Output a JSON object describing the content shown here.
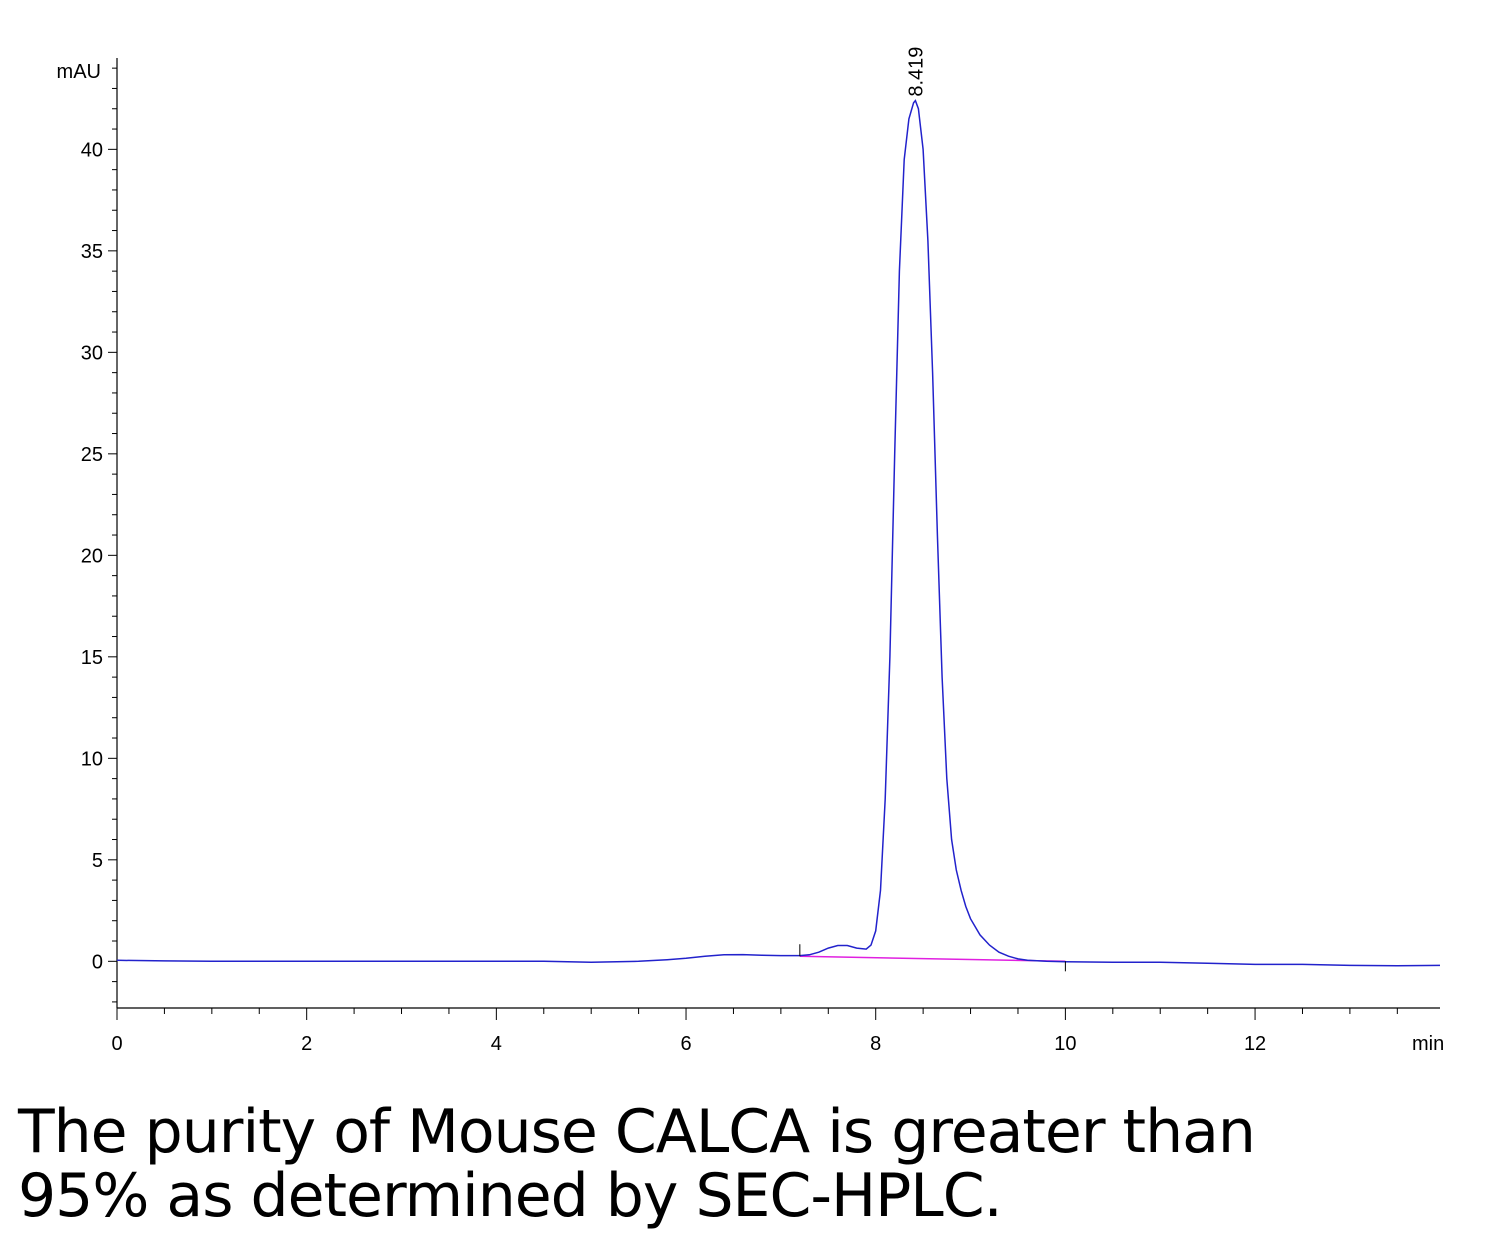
{
  "chart_data": {
    "type": "line",
    "x_unit_label": "min",
    "y_unit_label": "mAU",
    "xlim": [
      0,
      13.95
    ],
    "ylim": [
      -2.3,
      44.5
    ],
    "x_ticks": [
      0,
      2,
      4,
      6,
      8,
      10,
      12
    ],
    "x_tick_labels": [
      "0",
      "2",
      "4",
      "6",
      "8",
      "10",
      "12"
    ],
    "y_ticks": [
      0,
      5,
      10,
      15,
      20,
      25,
      30,
      35,
      40
    ],
    "y_tick_labels": [
      "0",
      "5",
      "10",
      "15",
      "20",
      "25",
      "30",
      "35",
      "40"
    ],
    "grid": false,
    "colors": {
      "signal": "#2222cc",
      "baseline": "#e020e0",
      "axes": "#000000"
    },
    "series": [
      {
        "x": [
          0,
          0.5,
          1,
          2,
          3,
          4,
          4.5,
          5,
          5.5,
          5.8,
          6.0,
          6.2,
          6.4,
          6.6,
          6.8,
          7.0,
          7.2,
          7.3,
          7.4,
          7.5,
          7.6,
          7.7,
          7.8,
          7.9,
          7.95,
          8.0,
          8.05,
          8.1,
          8.15,
          8.2,
          8.25,
          8.3,
          8.35,
          8.4,
          8.419,
          8.45,
          8.5,
          8.55,
          8.6,
          8.65,
          8.7,
          8.75,
          8.8,
          8.85,
          8.9,
          8.95,
          9.0,
          9.1,
          9.2,
          9.3,
          9.4,
          9.5,
          9.6,
          9.8,
          10.0,
          10.5,
          11,
          11.5,
          12,
          12.5,
          13,
          13.5,
          13.95
        ],
        "y": [
          0.05,
          0.02,
          0.0,
          0.0,
          0.0,
          0.0,
          0.0,
          -0.05,
          0.0,
          0.08,
          0.15,
          0.25,
          0.32,
          0.33,
          0.3,
          0.28,
          0.28,
          0.32,
          0.45,
          0.65,
          0.78,
          0.78,
          0.65,
          0.6,
          0.8,
          1.5,
          3.5,
          8,
          15,
          25,
          34,
          39.5,
          41.5,
          42.3,
          42.4,
          42.0,
          40.0,
          35.5,
          29,
          21,
          14,
          9,
          6,
          4.5,
          3.5,
          2.7,
          2.1,
          1.3,
          0.8,
          0.45,
          0.25,
          0.12,
          0.05,
          0.0,
          -0.02,
          -0.05,
          -0.05,
          -0.1,
          -0.15,
          -0.15,
          -0.2,
          -0.22,
          -0.2
        ]
      }
    ],
    "baseline": {
      "x": [
        7.2,
        10.0
      ],
      "y": [
        0.25,
        0.0
      ]
    },
    "annotations": [
      {
        "text": "8.419",
        "x": 8.419,
        "y": 42.4
      }
    ]
  },
  "caption": {
    "line1": "The purity of Mouse CALCA is greater than",
    "line2": "95% as determined by SEC-HPLC."
  }
}
